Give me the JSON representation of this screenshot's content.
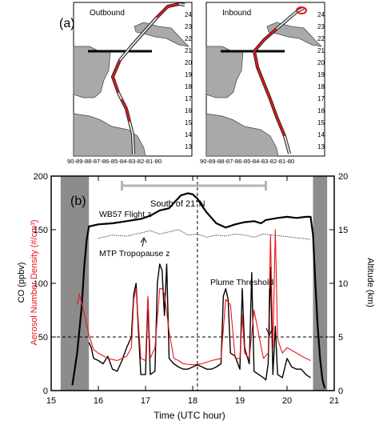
{
  "panel_a": {
    "label": "(a)",
    "maps": [
      {
        "title": "Outbound",
        "lat_ticks": [
          "24",
          "23",
          "22",
          "21",
          "20",
          "19",
          "18",
          "17",
          "16",
          "15",
          "14",
          "13"
        ],
        "lon_label": "90-89-88-87-86-85-84-83-82-81-80"
      },
      {
        "title": "Inbound",
        "lat_ticks": [
          "24",
          "23",
          "22",
          "21",
          "20",
          "19",
          "18",
          "17",
          "16",
          "15",
          "14",
          "13"
        ],
        "lon_label": "90-89-88-87-86-85-84-83-82-81-80"
      }
    ]
  },
  "panel_b": {
    "label": "(b)"
  },
  "colors": {
    "co": "#000000",
    "aerosol": "#e8141c",
    "shade": "#8c8c8c",
    "tropopause": "#555555",
    "bracket": "#b4b4b4",
    "map_land": "#a9a9a9",
    "track_red": "#e0141a"
  },
  "chart_data": {
    "type": "line",
    "xlabel": "Time (UTC hour)",
    "ylabel_left": "CO (ppbv)",
    "ylabel_left_red": "Aerosol Number Density (#/cm³)",
    "ylabel_right": "Altitude (km)",
    "xlim": [
      15,
      21
    ],
    "ylim_left": [
      0,
      200
    ],
    "ylim_right": [
      0,
      20
    ],
    "x_ticks": [
      "15",
      "16",
      "17",
      "18",
      "19",
      "20",
      "21"
    ],
    "y_ticks_left": [
      "0",
      "50",
      "100",
      "150",
      "200"
    ],
    "y_ticks_right": [
      "0",
      "5",
      "10",
      "15",
      "20"
    ],
    "annotations": {
      "south": "South of 21°N",
      "flight": "WB57 Flight z",
      "tropopause": "MTP Tropopause z",
      "plume": "Plume Threshold"
    },
    "south_of_21N_range": [
      16.5,
      19.55
    ],
    "shaded_ranges": [
      [
        15.2,
        15.8
      ],
      [
        20.55,
        20.85
      ]
    ],
    "vertical_dashed_x": 18.1,
    "horizontal_dashed_y": 50,
    "series": [
      {
        "axis": "right",
        "x": [
          15.45,
          15.55,
          15.65,
          15.7,
          15.75,
          15.8,
          16.0,
          16.3,
          16.6,
          16.9,
          17.1,
          17.3,
          17.5,
          17.6,
          17.75,
          17.9,
          18.0,
          18.1,
          18.2,
          18.3,
          18.4,
          18.5,
          18.7,
          18.9,
          19.1,
          19.3,
          19.45,
          19.55,
          19.8,
          20.0,
          20.2,
          20.4,
          20.5,
          20.55,
          20.6,
          20.65,
          20.7,
          20.75,
          20.8
        ],
        "y": [
          0.5,
          3.5,
          8,
          11.5,
          14,
          15.3,
          15.5,
          15.6,
          15.8,
          16.0,
          16.3,
          16.8,
          17.0,
          17.5,
          18.2,
          18.4,
          18.3,
          17.9,
          17.2,
          16.6,
          16.1,
          15.6,
          15.2,
          15.5,
          15.7,
          15.8,
          15.6,
          15.9,
          16.1,
          16.2,
          16.1,
          16.2,
          16.2,
          14.5,
          10,
          6,
          3,
          1,
          0.2
        ]
      },
      {
        "axis": "right",
        "x": [
          16.0,
          16.3,
          16.6,
          16.9,
          17.1,
          17.3,
          17.5,
          17.7,
          17.9,
          18.1,
          18.3,
          18.5,
          18.7,
          18.9,
          19.1,
          19.3,
          19.5,
          19.7,
          19.9,
          20.1,
          20.3,
          20.5
        ],
        "y": [
          14.2,
          14.5,
          14.4,
          14.7,
          14.9,
          14.6,
          14.8,
          15.0,
          14.5,
          14.6,
          14.3,
          14.5,
          14.4,
          14.6,
          14.5,
          14.3,
          14.6,
          14.5,
          14.4,
          14.3,
          14.2,
          14.1
        ]
      },
      {
        "axis": "left",
        "x": [
          15.8,
          15.85,
          15.9,
          16.0,
          16.1,
          16.2,
          16.3,
          16.4,
          16.5,
          16.6,
          16.7,
          16.75,
          16.8,
          16.85,
          16.9,
          17.0,
          17.05,
          17.1,
          17.2,
          17.25,
          17.3,
          17.35,
          17.4,
          17.45,
          17.5,
          17.6,
          17.7,
          17.8,
          17.9,
          18.0,
          18.1,
          18.2,
          18.3,
          18.4,
          18.5,
          18.6,
          18.65,
          18.7,
          18.75,
          18.8,
          18.9,
          19.0,
          19.05,
          19.1,
          19.2,
          19.25,
          19.3,
          19.4,
          19.5,
          19.55,
          19.6,
          19.65,
          19.7,
          19.75,
          19.8,
          19.9,
          20.0,
          20.1,
          20.2,
          20.3,
          20.4,
          20.5
        ],
        "y": [
          45,
          40,
          30,
          28,
          25,
          32,
          20,
          18,
          28,
          40,
          50,
          90,
          100,
          55,
          15,
          15,
          85,
          15,
          18,
          100,
          118,
          112,
          70,
          118,
          30,
          25,
          22,
          20,
          20,
          22,
          24,
          22,
          20,
          20,
          22,
          25,
          88,
          95,
          85,
          35,
          32,
          20,
          95,
          40,
          25,
          110,
          18,
          15,
          12,
          10,
          25,
          115,
          15,
          60,
          15,
          12,
          30,
          22,
          20,
          20,
          15,
          12
        ]
      },
      {
        "axis": "left",
        "x": [
          15.55,
          15.6,
          15.7,
          15.8,
          15.9,
          16.0,
          16.2,
          16.4,
          16.6,
          16.7,
          16.75,
          16.8,
          16.9,
          17.0,
          17.05,
          17.1,
          17.2,
          17.3,
          17.35,
          17.4,
          17.5,
          17.6,
          17.7,
          17.8,
          18.0,
          18.2,
          18.4,
          18.6,
          18.7,
          18.8,
          18.9,
          19.0,
          19.05,
          19.1,
          19.2,
          19.3,
          19.5,
          19.6,
          19.65,
          19.7,
          19.75,
          19.8,
          19.9,
          20.0,
          20.2,
          20.4,
          20.5
        ],
        "y": [
          80,
          90,
          72,
          52,
          38,
          35,
          30,
          28,
          32,
          40,
          85,
          95,
          30,
          28,
          88,
          30,
          40,
          95,
          95,
          90,
          55,
          30,
          28,
          25,
          24,
          25,
          28,
          30,
          85,
          80,
          30,
          30,
          70,
          35,
          30,
          75,
          30,
          35,
          145,
          40,
          150,
          48,
          35,
          40,
          35,
          30,
          28
        ]
      }
    ]
  }
}
